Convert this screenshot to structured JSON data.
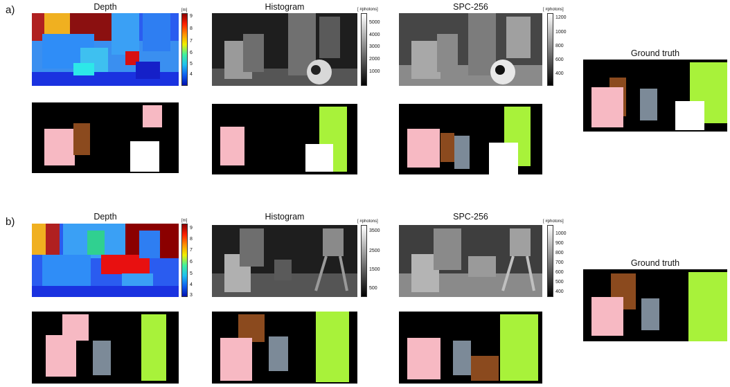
{
  "colors": {
    "pink": "#f7b9c3",
    "brown": "#8b4a1e",
    "slate": "#7c8a98",
    "white": "#ffffff",
    "lime": "#a8f23a",
    "black": "#000000"
  },
  "rows": [
    {
      "label": "a)",
      "titles": {
        "depth": "Depth",
        "histogram": "Histogram",
        "spc": "SPC-256",
        "gt": "Ground truth"
      },
      "depth_cbar": {
        "unit": "[m]",
        "ticks": [
          "9",
          "8",
          "7",
          "6",
          "5",
          "4"
        ]
      },
      "hist_cbar": {
        "unit": "[ #photons]",
        "ticks": [
          "5000",
          "4000",
          "3000",
          "2000",
          "1000"
        ]
      },
      "spc_cbar": {
        "unit": "[ #photons]",
        "ticks": [
          "1200",
          "1000",
          "800",
          "600",
          "400"
        ]
      }
    },
    {
      "label": "b)",
      "titles": {
        "depth": "Depth",
        "histogram": "Histogram",
        "spc": "SPC-256",
        "gt": "Ground truth"
      },
      "depth_cbar": {
        "unit": "[m]",
        "ticks": [
          "9",
          "8",
          "7",
          "6",
          "5",
          "4",
          "3"
        ]
      },
      "hist_cbar": {
        "unit": "[ #photons]",
        "ticks": [
          "3500",
          "2500",
          "1500",
          "500"
        ]
      },
      "spc_cbar": {
        "unit": "[ #photons]",
        "ticks": [
          "1000",
          "900",
          "800",
          "700",
          "600",
          "500",
          "400"
        ]
      }
    }
  ]
}
